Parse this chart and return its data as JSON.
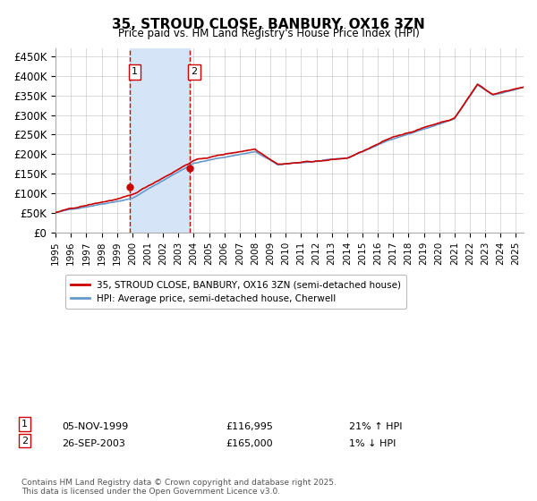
{
  "title": "35, STROUD CLOSE, BANBURY, OX16 3ZN",
  "subtitle": "Price paid vs. HM Land Registry's House Price Index (HPI)",
  "ylabel_ticks": [
    "£0",
    "£50K",
    "£100K",
    "£150K",
    "£200K",
    "£250K",
    "£300K",
    "£350K",
    "£400K",
    "£450K"
  ],
  "ytick_vals": [
    0,
    50000,
    100000,
    150000,
    200000,
    250000,
    300000,
    350000,
    400000,
    450000
  ],
  "ylim": [
    0,
    470000
  ],
  "xlim_start": 1995.0,
  "xlim_end": 2025.5,
  "xticks": [
    1995,
    1996,
    1997,
    1998,
    1999,
    2000,
    2001,
    2002,
    2003,
    2004,
    2005,
    2006,
    2007,
    2008,
    2009,
    2010,
    2011,
    2012,
    2013,
    2014,
    2015,
    2016,
    2017,
    2018,
    2019,
    2020,
    2021,
    2022,
    2023,
    2024,
    2025
  ],
  "legend_red_label": "35, STROUD CLOSE, BANBURY, OX16 3ZN (semi-detached house)",
  "legend_blue_label": "HPI: Average price, semi-detached house, Cherwell",
  "sale1_date": "05-NOV-1999",
  "sale1_price": "£116,995",
  "sale1_hpi": "21% ↑ HPI",
  "sale1_x": 1999.85,
  "sale1_price_val": 116995,
  "sale2_date": "26-SEP-2003",
  "sale2_price": "£165,000",
  "sale2_hpi": "1% ↓ HPI",
  "sale2_x": 2003.73,
  "sale2_price_val": 165000,
  "shade_color": "#d6e4f7",
  "red_line_color": "#cc0000",
  "blue_line_color": "#6699cc",
  "dashed_line_color": "#cc0000",
  "footer": "Contains HM Land Registry data © Crown copyright and database right 2025.\nThis data is licensed under the Open Government Licence v3.0.",
  "background_color": "#ffffff",
  "grid_color": "#cccccc"
}
